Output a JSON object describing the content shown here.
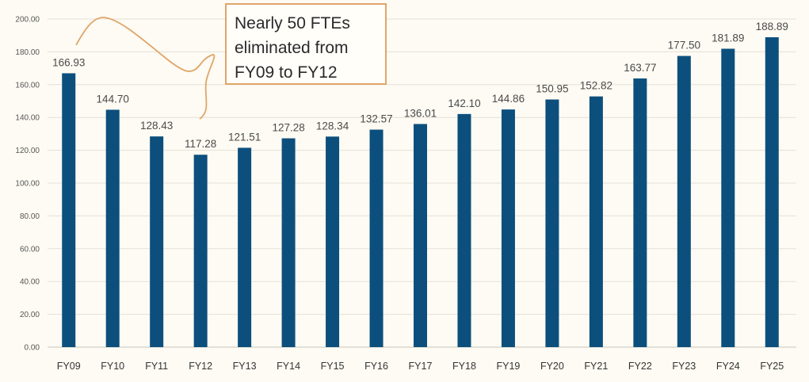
{
  "chart_data": {
    "type": "bar",
    "title": "",
    "xlabel": "",
    "ylabel": "",
    "categories": [
      "FY09",
      "FY10",
      "FY11",
      "FY12",
      "FY13",
      "FY14",
      "FY15",
      "FY16",
      "FY17",
      "FY18",
      "FY19",
      "FY20",
      "FY21",
      "FY22",
      "FY23",
      "FY24",
      "FY25"
    ],
    "values": [
      166.93,
      144.7,
      128.43,
      117.28,
      121.51,
      127.28,
      128.34,
      132.57,
      136.01,
      142.1,
      144.86,
      150.95,
      152.82,
      163.77,
      177.5,
      181.89,
      188.89
    ],
    "value_labels": [
      "166.93",
      "144.70",
      "128.43",
      "117.28",
      "121.51",
      "127.28",
      "128.34",
      "132.57",
      "136.01",
      "142.10",
      "144.86",
      "150.95",
      "152.82",
      "163.77",
      "177.50",
      "181.89",
      "188.89"
    ],
    "ylim": [
      0,
      200
    ],
    "y_ticks": [
      "0.00",
      "20.00",
      "40.00",
      "60.00",
      "80.00",
      "100.00",
      "120.00",
      "140.00",
      "160.00",
      "180.00",
      "200.00"
    ],
    "grid": true,
    "legend": "none",
    "bar_color": "#0c4f7d",
    "annotation": {
      "lines": [
        "Nearly 50 FTEs",
        "eliminated from",
        "FY09 to FY12"
      ],
      "border_color": "#e0a56a"
    }
  }
}
